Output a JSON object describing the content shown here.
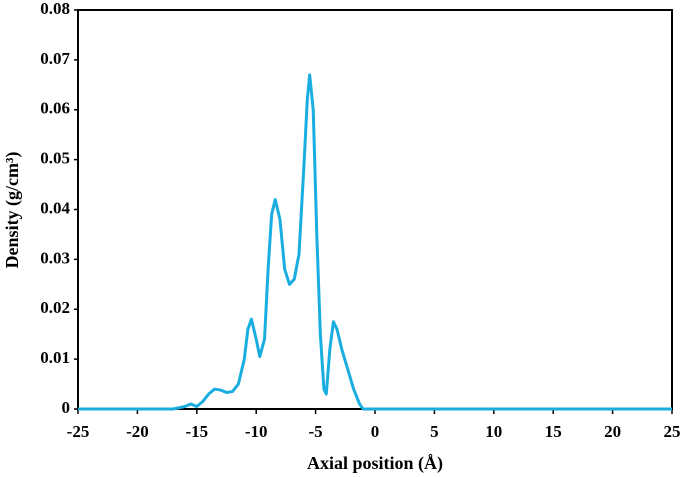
{
  "chart_data": {
    "type": "line",
    "xlabel": "Axial position (Å)",
    "ylabel": "Density (g/cm³)",
    "series": [
      {
        "color": "#1aaee0",
        "x": [
          -25,
          -20,
          -17,
          -16,
          -15.5,
          -15,
          -14.5,
          -14,
          -13.5,
          -13,
          -12.5,
          -12,
          -11.5,
          -11,
          -10.7,
          -10.4,
          -10,
          -9.7,
          -9.3,
          -9,
          -8.7,
          -8.4,
          -8,
          -7.6,
          -7.2,
          -6.8,
          -6.4,
          -6,
          -5.7,
          -5.5,
          -5.2,
          -4.9,
          -4.6,
          -4.3,
          -4.1,
          -3.8,
          -3.5,
          -3.2,
          -2.8,
          -2.3,
          -1.8,
          -1.3,
          -1,
          0,
          25
        ],
        "values": [
          0,
          0,
          0,
          0.0005,
          0.001,
          0.0005,
          0.0015,
          0.003,
          0.004,
          0.0038,
          0.0033,
          0.0035,
          0.005,
          0.01,
          0.016,
          0.018,
          0.014,
          0.0105,
          0.014,
          0.028,
          0.039,
          0.042,
          0.038,
          0.028,
          0.025,
          0.026,
          0.031,
          0.048,
          0.062,
          0.067,
          0.06,
          0.035,
          0.015,
          0.004,
          0.003,
          0.012,
          0.0175,
          0.016,
          0.012,
          0.008,
          0.004,
          0.001,
          0,
          0,
          0
        ]
      }
    ],
    "xlim": [
      -25,
      25
    ],
    "xticks": [
      -25,
      -20,
      -15,
      -10,
      -5,
      0,
      5,
      10,
      15,
      20,
      25
    ],
    "ylim": [
      0,
      0.08
    ],
    "yticks": [
      0,
      0.01,
      0.02,
      0.03,
      0.04,
      0.05,
      0.06,
      0.07,
      0.08
    ]
  }
}
